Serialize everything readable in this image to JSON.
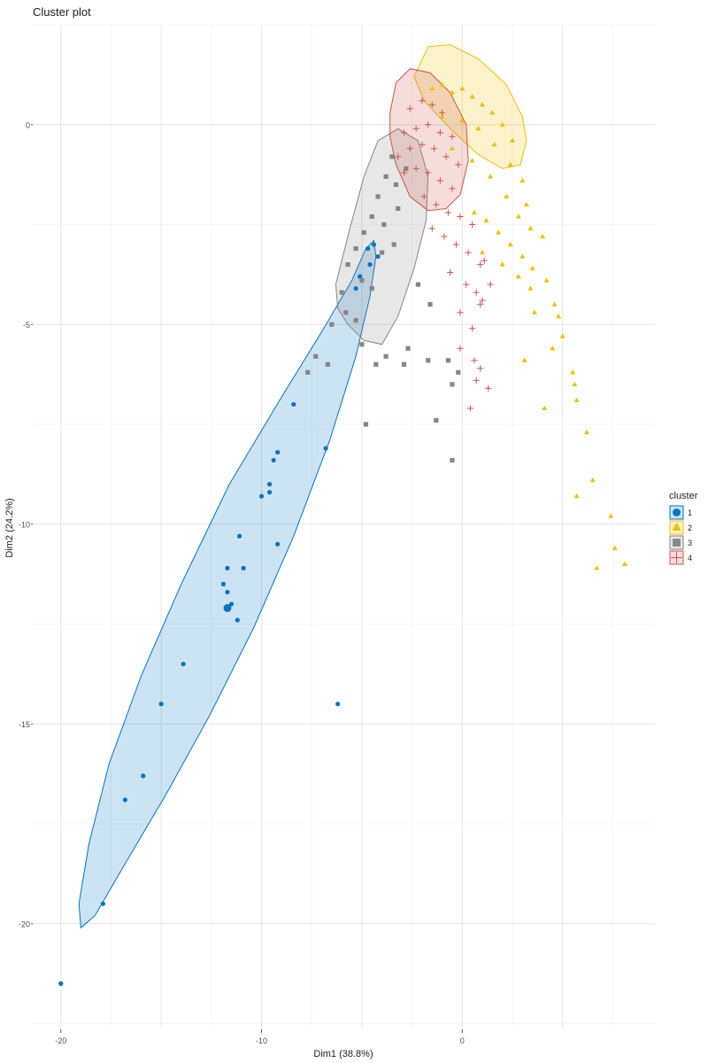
{
  "chart_data": {
    "type": "scatter",
    "title": "Cluster plot",
    "xlabel": "Dim1 (38.8%)",
    "ylabel": "Dim2 (24.2%)",
    "xlim": [
      -21.4,
      9.6
    ],
    "ylim": [
      -22.6,
      2.5
    ],
    "x_ticks": [
      -20,
      -10,
      0
    ],
    "y_ticks": [
      0,
      -5,
      -10,
      -15,
      -20
    ],
    "grid": true,
    "legend": {
      "title": "cluster",
      "position": "right",
      "items": [
        {
          "label": "1",
          "color": "#0073C2",
          "shape": "circle"
        },
        {
          "label": "2",
          "color": "#EFC000",
          "shape": "triangle"
        },
        {
          "label": "3",
          "color": "#868686",
          "shape": "square"
        },
        {
          "label": "4",
          "color": "#CD534C",
          "shape": "cross"
        }
      ]
    },
    "series": [
      {
        "name": "1",
        "color": "#0073C2",
        "shape": "circle",
        "centroid": [
          -11.7,
          -12.1
        ],
        "points": [
          [
            -20.0,
            -21.5
          ],
          [
            -17.9,
            -19.5
          ],
          [
            -16.8,
            -16.9
          ],
          [
            -15.9,
            -16.3
          ],
          [
            -15.0,
            -14.5
          ],
          [
            -13.9,
            -13.5
          ],
          [
            -11.5,
            -12.0
          ],
          [
            -11.2,
            -12.4
          ],
          [
            -11.7,
            -11.7
          ],
          [
            -11.9,
            -11.5
          ],
          [
            -11.7,
            -11.1
          ],
          [
            -10.9,
            -11.1
          ],
          [
            -11.1,
            -10.3
          ],
          [
            -9.2,
            -10.5
          ],
          [
            -10.0,
            -9.3
          ],
          [
            -9.6,
            -9.2
          ],
          [
            -9.6,
            -9.0
          ],
          [
            -9.4,
            -8.4
          ],
          [
            -9.2,
            -8.2
          ],
          [
            -6.8,
            -8.1
          ],
          [
            -8.4,
            -7.0
          ],
          [
            -6.2,
            -14.5
          ],
          [
            -5.3,
            -4.1
          ],
          [
            -5.1,
            -3.8
          ],
          [
            -4.6,
            -3.5
          ],
          [
            -4.7,
            -3.1
          ],
          [
            -4.4,
            -3.0
          ],
          [
            -4.2,
            -3.3
          ]
        ]
      },
      {
        "name": "2",
        "color": "#EFC000",
        "shape": "triangle",
        "points": [
          [
            -1.5,
            0.9
          ],
          [
            -1.0,
            1.0
          ],
          [
            -0.5,
            0.8
          ],
          [
            0.0,
            0.9
          ],
          [
            0.5,
            0.7
          ],
          [
            1.0,
            0.5
          ],
          [
            1.5,
            0.3
          ],
          [
            2.0,
            0.0
          ],
          [
            2.5,
            -0.4
          ],
          [
            -1.0,
            0.2
          ],
          [
            0.0,
            0.1
          ],
          [
            0.8,
            -0.1
          ],
          [
            1.6,
            -0.5
          ],
          [
            2.4,
            -1.0
          ],
          [
            3.0,
            -1.4
          ],
          [
            3.2,
            -2.0
          ],
          [
            -0.5,
            -0.6
          ],
          [
            0.5,
            -0.9
          ],
          [
            1.4,
            -1.3
          ],
          [
            2.2,
            -1.8
          ],
          [
            2.8,
            -2.3
          ],
          [
            3.4,
            -2.6
          ],
          [
            4.0,
            -2.8
          ],
          [
            0.6,
            -2.2
          ],
          [
            1.2,
            -2.4
          ],
          [
            1.8,
            -2.7
          ],
          [
            2.4,
            -3.0
          ],
          [
            3.0,
            -3.3
          ],
          [
            3.5,
            -3.6
          ],
          [
            4.2,
            -3.9
          ],
          [
            1.0,
            -3.2
          ],
          [
            2.0,
            -3.5
          ],
          [
            2.8,
            -3.8
          ],
          [
            3.4,
            -4.1
          ],
          [
            4.6,
            -4.5
          ],
          [
            3.6,
            -4.7
          ],
          [
            4.8,
            -4.8
          ],
          [
            5.0,
            -5.3
          ],
          [
            4.5,
            -5.6
          ],
          [
            3.1,
            -5.9
          ],
          [
            5.5,
            -6.2
          ],
          [
            5.6,
            -6.5
          ],
          [
            5.7,
            -6.9
          ],
          [
            4.1,
            -7.1
          ],
          [
            6.2,
            -7.7
          ],
          [
            6.5,
            -8.9
          ],
          [
            5.7,
            -9.3
          ],
          [
            7.4,
            -9.8
          ],
          [
            7.6,
            -10.6
          ],
          [
            6.7,
            -11.1
          ],
          [
            8.1,
            -11.0
          ]
        ]
      },
      {
        "name": "3",
        "color": "#868686",
        "shape": "square",
        "points": [
          [
            -3.5,
            -0.8
          ],
          [
            -3.8,
            -1.3
          ],
          [
            -4.2,
            -1.8
          ],
          [
            -3.3,
            -1.5
          ],
          [
            -2.8,
            -1.1
          ],
          [
            -4.5,
            -2.3
          ],
          [
            -4.9,
            -2.7
          ],
          [
            -3.9,
            -2.5
          ],
          [
            -3.2,
            -2.1
          ],
          [
            -5.3,
            -3.1
          ],
          [
            -4.0,
            -3.2
          ],
          [
            -3.4,
            -3.0
          ],
          [
            -5.7,
            -3.5
          ],
          [
            -5.0,
            -3.9
          ],
          [
            -4.5,
            -4.1
          ],
          [
            -6.0,
            -4.2
          ],
          [
            -5.8,
            -4.7
          ],
          [
            -5.3,
            -4.9
          ],
          [
            -6.5,
            -5.0
          ],
          [
            -5.0,
            -5.5
          ],
          [
            -2.7,
            -5.6
          ],
          [
            -3.8,
            -5.8
          ],
          [
            -4.3,
            -6.0
          ],
          [
            -1.7,
            -5.9
          ],
          [
            -2.9,
            -6.0
          ],
          [
            -0.7,
            -5.9
          ],
          [
            -6.7,
            -6.0
          ],
          [
            -7.3,
            -5.8
          ],
          [
            -7.7,
            -6.2
          ],
          [
            -4.8,
            -7.5
          ],
          [
            -1.3,
            -7.4
          ],
          [
            -0.5,
            -8.4
          ],
          [
            -2.2,
            -4.0
          ],
          [
            -1.6,
            -4.5
          ],
          [
            -0.2,
            -6.2
          ],
          [
            -0.5,
            -6.5
          ]
        ]
      },
      {
        "name": "4",
        "color": "#CD534C",
        "shape": "cross",
        "points": [
          [
            -2.6,
            0.4
          ],
          [
            -2.0,
            0.6
          ],
          [
            -1.5,
            0.5
          ],
          [
            -1.0,
            0.3
          ],
          [
            -2.9,
            -0.2
          ],
          [
            -2.3,
            -0.1
          ],
          [
            -1.7,
            0.0
          ],
          [
            -1.1,
            -0.2
          ],
          [
            -0.5,
            -0.3
          ],
          [
            -3.2,
            -0.8
          ],
          [
            -2.6,
            -0.6
          ],
          [
            -2.0,
            -0.5
          ],
          [
            -1.4,
            -0.6
          ],
          [
            -0.8,
            -0.8
          ],
          [
            -0.2,
            -1.0
          ],
          [
            -2.9,
            -1.2
          ],
          [
            -2.3,
            -1.1
          ],
          [
            -1.7,
            -1.2
          ],
          [
            -1.1,
            -1.4
          ],
          [
            -0.5,
            -1.6
          ],
          [
            -1.9,
            -1.8
          ],
          [
            -1.3,
            -2.0
          ],
          [
            -0.7,
            -2.2
          ],
          [
            -0.1,
            -2.3
          ],
          [
            0.5,
            -2.5
          ],
          [
            -1.5,
            -2.6
          ],
          [
            -0.9,
            -2.8
          ],
          [
            -0.3,
            -3.0
          ],
          [
            0.3,
            -3.2
          ],
          [
            0.9,
            -3.5
          ],
          [
            -0.6,
            -3.7
          ],
          [
            0.2,
            -4.0
          ],
          [
            0.7,
            -4.2
          ],
          [
            0.9,
            -4.5
          ],
          [
            -0.1,
            -4.7
          ],
          [
            0.5,
            -5.1
          ],
          [
            -0.1,
            -5.6
          ],
          [
            0.6,
            -5.9
          ],
          [
            0.9,
            -6.1
          ],
          [
            0.7,
            -6.4
          ],
          [
            1.3,
            -6.6
          ],
          [
            0.4,
            -7.1
          ],
          [
            1.0,
            -4.4
          ],
          [
            1.4,
            -4.0
          ],
          [
            1.1,
            -3.4
          ]
        ]
      }
    ],
    "ellipses": [
      {
        "cluster": "1",
        "color": "#0073C2",
        "path": [
          [
            -19.0,
            -20.1
          ],
          [
            -19.1,
            -19.5
          ],
          [
            -18.6,
            -18.0
          ],
          [
            -17.6,
            -16.0
          ],
          [
            -16.0,
            -13.8
          ],
          [
            -14.0,
            -11.5
          ],
          [
            -11.6,
            -9.0
          ],
          [
            -9.1,
            -6.9
          ],
          [
            -6.9,
            -5.1
          ],
          [
            -5.5,
            -3.9
          ],
          [
            -4.8,
            -3.1
          ],
          [
            -4.4,
            -2.9
          ],
          [
            -4.3,
            -3.3
          ],
          [
            -4.6,
            -4.3
          ],
          [
            -5.3,
            -5.8
          ],
          [
            -6.6,
            -7.9
          ],
          [
            -8.4,
            -10.3
          ],
          [
            -10.4,
            -12.6
          ],
          [
            -12.6,
            -14.8
          ],
          [
            -14.8,
            -16.8
          ],
          [
            -16.8,
            -18.5
          ],
          [
            -18.3,
            -19.8
          ],
          [
            -19.0,
            -20.1
          ]
        ]
      },
      {
        "cluster": "2",
        "color": "#EFC000",
        "path": [
          [
            -2.4,
            1.2
          ],
          [
            -1.7,
            1.95
          ],
          [
            -0.6,
            2.0
          ],
          [
            0.8,
            1.65
          ],
          [
            2.2,
            1.0
          ],
          [
            3.0,
            0.2
          ],
          [
            3.2,
            -0.4
          ],
          [
            2.9,
            -1.0
          ],
          [
            2.0,
            -1.1
          ],
          [
            0.8,
            -0.75
          ],
          [
            -0.6,
            -0.1
          ],
          [
            -1.9,
            0.6
          ],
          [
            -2.4,
            1.2
          ]
        ]
      },
      {
        "cluster": "3",
        "color": "#868686",
        "path": [
          [
            -6.3,
            -4.0
          ],
          [
            -5.6,
            -2.6
          ],
          [
            -4.9,
            -1.3
          ],
          [
            -4.2,
            -0.4
          ],
          [
            -3.2,
            -0.1
          ],
          [
            -2.2,
            -0.4
          ],
          [
            -1.7,
            -1.3
          ],
          [
            -1.8,
            -2.4
          ],
          [
            -2.4,
            -3.6
          ],
          [
            -3.2,
            -4.8
          ],
          [
            -4.0,
            -5.5
          ],
          [
            -4.9,
            -5.4
          ],
          [
            -5.7,
            -5.0
          ],
          [
            -6.2,
            -4.6
          ],
          [
            -6.3,
            -4.0
          ]
        ]
      },
      {
        "cluster": "4",
        "color": "#CD534C",
        "path": [
          [
            -3.6,
            0.3
          ],
          [
            -3.3,
            1.05
          ],
          [
            -2.6,
            1.4
          ],
          [
            -1.6,
            1.3
          ],
          [
            -0.6,
            0.8
          ],
          [
            0.2,
            0.0
          ],
          [
            0.3,
            -0.9
          ],
          [
            -0.1,
            -1.75
          ],
          [
            -0.8,
            -2.1
          ],
          [
            -1.7,
            -2.15
          ],
          [
            -2.6,
            -1.8
          ],
          [
            -3.3,
            -1.0
          ],
          [
            -3.6,
            -0.3
          ],
          [
            -3.6,
            0.3
          ]
        ]
      }
    ]
  }
}
